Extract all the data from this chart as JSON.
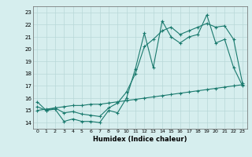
{
  "series1": [
    15.7,
    15.0,
    15.1,
    14.1,
    14.3,
    14.1,
    14.1,
    14.0,
    15.0,
    14.8,
    16.0,
    18.4,
    21.3,
    18.5,
    22.3,
    21.0,
    20.5,
    21.0,
    21.2,
    22.8,
    20.5,
    20.8,
    18.5,
    17.0
  ],
  "series2": [
    15.3,
    15.0,
    15.2,
    14.8,
    14.9,
    14.7,
    14.6,
    14.5,
    15.2,
    15.6,
    16.5,
    18.0,
    20.2,
    20.8,
    21.5,
    21.8,
    21.2,
    21.5,
    21.8,
    22.1,
    21.8,
    21.9,
    20.8,
    17.2
  ],
  "series3": [
    15.0,
    15.1,
    15.2,
    15.3,
    15.4,
    15.4,
    15.5,
    15.5,
    15.6,
    15.7,
    15.8,
    15.9,
    16.0,
    16.1,
    16.2,
    16.3,
    16.4,
    16.5,
    16.6,
    16.7,
    16.8,
    16.9,
    17.0,
    17.1
  ],
  "x": [
    0,
    1,
    2,
    3,
    4,
    5,
    6,
    7,
    8,
    9,
    10,
    11,
    12,
    13,
    14,
    15,
    16,
    17,
    18,
    19,
    20,
    21,
    22,
    23
  ],
  "xlim": [
    -0.5,
    23.5
  ],
  "ylim": [
    13.5,
    23.5
  ],
  "yticks": [
    14,
    15,
    16,
    17,
    18,
    19,
    20,
    21,
    22,
    23
  ],
  "xticks": [
    0,
    1,
    2,
    3,
    4,
    5,
    6,
    7,
    8,
    9,
    10,
    11,
    12,
    13,
    14,
    15,
    16,
    17,
    18,
    19,
    20,
    21,
    22,
    23
  ],
  "xlabel": "Humidex (Indice chaleur)",
  "line_color": "#1a7a6e",
  "bg_color": "#d6eeee",
  "grid_color": "#b8d8d8"
}
